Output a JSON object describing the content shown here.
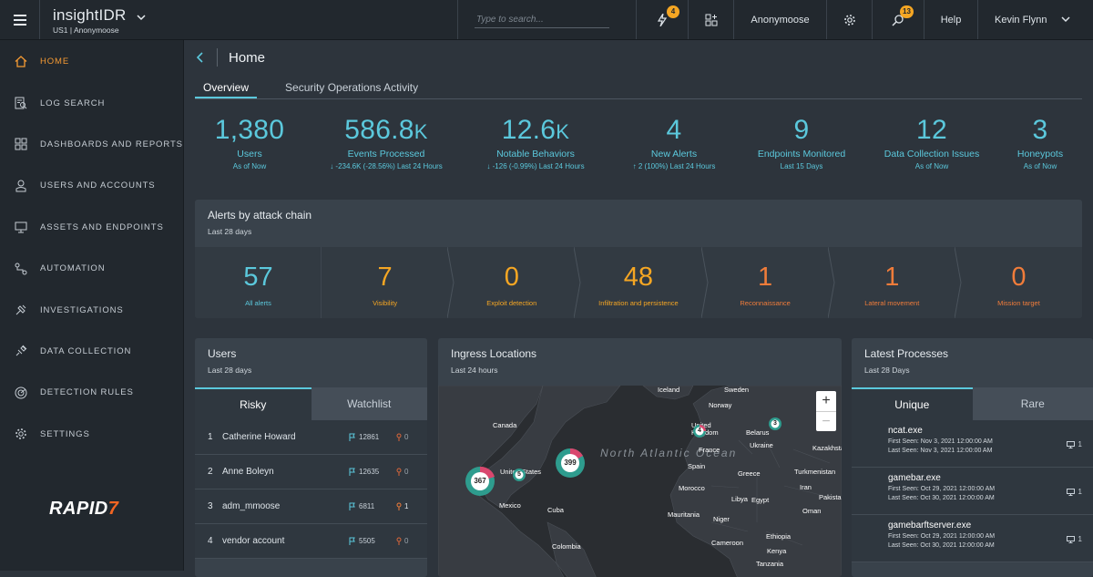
{
  "topbar": {
    "app_name": "insightIDR",
    "org": "US1 | Anonymoose",
    "search_placeholder": "Type to search...",
    "alerts_badge": "4",
    "org_name": "Anonymoose",
    "notifications_badge": "13",
    "help_label": "Help",
    "user_name": "Kevin Flynn"
  },
  "sidebar": {
    "items": [
      {
        "label": "HOME",
        "icon": "home-icon"
      },
      {
        "label": "LOG SEARCH",
        "icon": "log-search-icon"
      },
      {
        "label": "DASHBOARDS AND REPORTS",
        "icon": "dashboard-icon"
      },
      {
        "label": "USERS AND ACCOUNTS",
        "icon": "user-icon"
      },
      {
        "label": "ASSETS AND ENDPOINTS",
        "icon": "monitor-icon"
      },
      {
        "label": "AUTOMATION",
        "icon": "automation-icon"
      },
      {
        "label": "INVESTIGATIONS",
        "icon": "investigations-icon"
      },
      {
        "label": "DATA COLLECTION",
        "icon": "data-collection-icon"
      },
      {
        "label": "DETECTION RULES",
        "icon": "detection-rules-icon"
      },
      {
        "label": "SETTINGS",
        "icon": "settings-icon"
      }
    ],
    "logo_main": "RAPID",
    "logo_end": "7"
  },
  "page": {
    "title": "Home",
    "tabs": [
      "Overview",
      "Security Operations Activity"
    ]
  },
  "kpis": [
    {
      "value": "1,380",
      "unit": "",
      "label": "Users",
      "sub": "As of Now"
    },
    {
      "value": "586.8",
      "unit": "K",
      "label": "Events Processed",
      "sub": "↓ -234.6K (-28.56%)   Last 24 Hours"
    },
    {
      "value": "12.6",
      "unit": "K",
      "label": "Notable Behaviors",
      "sub": "↓ -126 (-0.99%)   Last 24 Hours"
    },
    {
      "value": "4",
      "unit": "",
      "label": "New Alerts",
      "sub": "↑ 2 (100%)   Last 24 Hours"
    },
    {
      "value": "9",
      "unit": "",
      "label": "Endpoints Monitored",
      "sub": "Last 15 Days"
    },
    {
      "value": "12",
      "unit": "",
      "label": "Data Collection Issues",
      "sub": "As of Now"
    },
    {
      "value": "3",
      "unit": "",
      "label": "Honeypots",
      "sub": "As of Now"
    }
  ],
  "attack_chain": {
    "title": "Alerts by attack chain",
    "subtitle": "Last 28 days",
    "stages": [
      {
        "value": "57",
        "label": "All alerts",
        "color": "#5bc8dc"
      },
      {
        "value": "7",
        "label": "Visibility",
        "color": "#f5a623"
      },
      {
        "value": "0",
        "label": "Exploit detection",
        "color": "#f5a623"
      },
      {
        "value": "48",
        "label": "Infiltration and persistence",
        "color": "#f5a623"
      },
      {
        "value": "1",
        "label": "Reconnaissance",
        "color": "#f07c3a"
      },
      {
        "value": "1",
        "label": "Lateral movement",
        "color": "#f07c3a"
      },
      {
        "value": "0",
        "label": "Mission target",
        "color": "#f07c3a"
      }
    ]
  },
  "users_card": {
    "title": "Users",
    "subtitle": "Last 28 days",
    "tabs": [
      "Risky",
      "Watchlist"
    ],
    "rows": [
      {
        "rank": "1",
        "name": "Catherine Howard",
        "flags": "12861",
        "pins": "0"
      },
      {
        "rank": "2",
        "name": "Anne Boleyn",
        "flags": "12635",
        "pins": "0"
      },
      {
        "rank": "3",
        "name": "adm_mmoose",
        "flags": "6811",
        "pins": "1"
      },
      {
        "rank": "4",
        "name": "vendor account",
        "flags": "5505",
        "pins": "0"
      }
    ]
  },
  "ingress_card": {
    "title": "Ingress Locations",
    "subtitle": "Last 24 hours",
    "places": [
      "Iceland",
      "Sweden",
      "Norway",
      "Canada",
      "United Kingdom",
      "Belarus",
      "Ukraine",
      "France",
      "Kazakhstan",
      "United States",
      "Spain",
      "Greece",
      "Turkmenistan",
      "Morocco",
      "Egypt",
      "Iran",
      "Pakistan",
      "Mexico",
      "Cuba",
      "Mauritania",
      "Niger",
      "Oman",
      "Libya",
      "Ethiopia",
      "Colombia",
      "Cameroon",
      "Kenya",
      "Tanzania"
    ],
    "ocean": "North Atlantic Ocean",
    "clusters": [
      "367",
      "5",
      "399",
      "4",
      "3"
    ],
    "zoom_in": "+",
    "zoom_out": "−"
  },
  "processes_card": {
    "title": "Latest Processes",
    "subtitle": "Last 28 Days",
    "tabs": [
      "Unique",
      "Rare"
    ],
    "rows": [
      {
        "name": "ncat.exe",
        "first": "First Seen: Nov 3, 2021 12:00:00 AM",
        "last": "Last Seen: Nov 3, 2021 12:00:00 AM",
        "count": "1"
      },
      {
        "name": "gamebar.exe",
        "first": "First Seen: Oct 29, 2021 12:00:00 AM",
        "last": "Last Seen: Oct 30, 2021 12:00:00 AM",
        "count": "1"
      },
      {
        "name": "gamebarftserver.exe",
        "first": "First Seen: Oct 29, 2021 12:00:00 AM",
        "last": "Last Seen: Oct 30, 2021 12:00:00 AM",
        "count": "1"
      }
    ]
  }
}
